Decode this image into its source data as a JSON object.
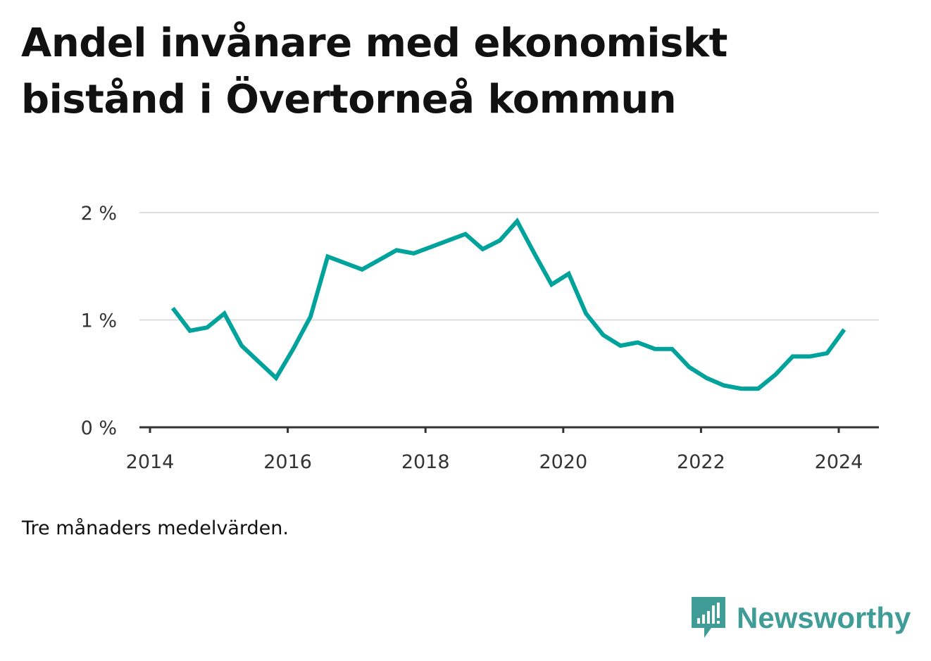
{
  "chart_data": {
    "type": "line",
    "title": "Andel invånare med ekonomiskt bistånd i Övertorneå kommun",
    "xlabel": "",
    "ylabel": "",
    "x_ticks": [
      "2014",
      "2016",
      "2018",
      "2020",
      "2022",
      "2024"
    ],
    "y_ticks": [
      "0 %",
      "1 %",
      "2 %"
    ],
    "xlim": [
      2014.0,
      2024.6
    ],
    "ylim": [
      0,
      2.0
    ],
    "grid": true,
    "line_color": "#00a39b",
    "series": [
      {
        "x": [
          2014.33,
          2014.58,
          2014.83,
          2015.08,
          2015.33,
          2015.58,
          2015.83,
          2016.08,
          2016.33,
          2016.58,
          2016.83,
          2017.08,
          2017.33,
          2017.58,
          2017.83,
          2018.08,
          2018.33,
          2018.58,
          2018.83,
          2019.08,
          2019.33,
          2019.58,
          2019.83,
          2020.08,
          2020.33,
          2020.58,
          2020.83,
          2021.08,
          2021.33,
          2021.58,
          2021.83,
          2022.08,
          2022.33,
          2022.58,
          2022.83,
          2023.08,
          2023.33,
          2023.58,
          2023.83,
          2024.08
        ],
        "values": [
          1.11,
          0.9,
          0.93,
          1.06,
          0.76,
          0.61,
          0.46,
          0.73,
          1.03,
          1.59,
          1.53,
          1.47,
          1.56,
          1.65,
          1.62,
          1.68,
          1.74,
          1.8,
          1.66,
          1.74,
          1.92,
          1.62,
          1.33,
          1.43,
          1.06,
          0.86,
          0.76,
          0.79,
          0.73,
          0.73,
          0.56,
          0.46,
          0.39,
          0.36,
          0.36,
          0.49,
          0.66,
          0.66,
          0.69,
          0.91
        ]
      }
    ]
  },
  "note": "Tre månaders medelvärden.",
  "brand": {
    "name": "Newsworthy",
    "logo_icon": "newsworthy-logo-icon",
    "color": "#3f9c96"
  }
}
